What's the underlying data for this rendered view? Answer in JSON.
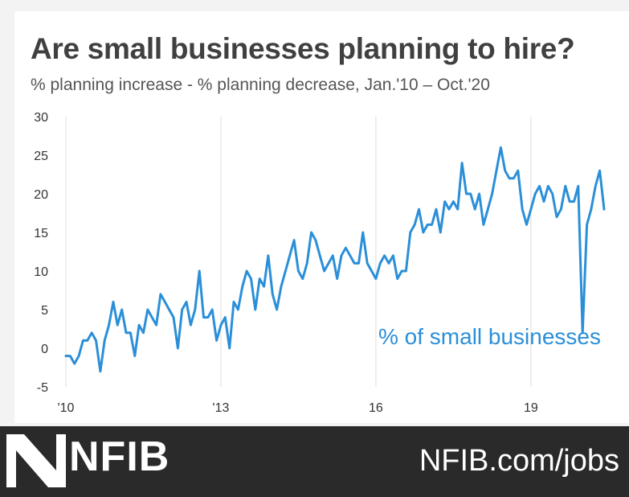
{
  "header": {
    "title": "Are small businesses planning to hire?",
    "subtitle": "% planning increase - % planning decrease, Jan.'10 – Oct.'20"
  },
  "footer": {
    "brand": "NFIB",
    "url": "NFIB.com/jobs"
  },
  "colors": {
    "line": "#2b8fd8",
    "title": "#404040",
    "footer_bg": "#2a2a2a"
  },
  "chart_data": {
    "type": "line",
    "title": "Are small businesses planning to hire?",
    "subtitle": "% planning increase - % planning decrease, Jan.'10 – Oct.'20",
    "xlabel": "",
    "ylabel": "",
    "ylim": [
      -5,
      30
    ],
    "yticks": [
      30,
      25,
      20,
      15,
      10,
      5,
      0,
      -5
    ],
    "xticks": [
      {
        "label": "'10",
        "month_index": 0
      },
      {
        "label": "'13",
        "month_index": 36
      },
      {
        "label": "16",
        "month_index": 72
      },
      {
        "label": "19",
        "month_index": 108
      }
    ],
    "grid": "vertical",
    "annotation": "% of small businesses",
    "series": [
      {
        "name": "% of small businesses",
        "start": "Jan.'10",
        "end": "Oct.'20",
        "values": [
          -1,
          -1,
          -2,
          -1,
          1,
          1,
          2,
          1,
          -3,
          1,
          3,
          6,
          3,
          5,
          2,
          2,
          -1,
          3,
          2,
          5,
          4,
          3,
          7,
          6,
          5,
          4,
          0,
          5,
          6,
          3,
          5,
          10,
          4,
          4,
          5,
          1,
          3,
          4,
          0,
          6,
          5,
          8,
          10,
          9,
          5,
          9,
          8,
          12,
          7,
          5,
          8,
          10,
          12,
          14,
          10,
          9,
          11,
          15,
          14,
          12,
          10,
          11,
          12,
          9,
          12,
          13,
          12,
          11,
          11,
          15,
          11,
          10,
          9,
          11,
          12,
          11,
          12,
          9,
          10,
          10,
          15,
          16,
          18,
          15,
          16,
          16,
          18,
          15,
          19,
          18,
          19,
          18,
          24,
          20,
          20,
          18,
          20,
          16,
          18,
          20,
          23,
          26,
          23,
          22,
          22,
          23,
          18,
          16,
          18,
          20,
          21,
          19,
          21,
          20,
          17,
          18,
          21,
          19,
          19,
          21,
          2,
          16,
          18,
          21,
          23,
          18
        ]
      }
    ]
  }
}
